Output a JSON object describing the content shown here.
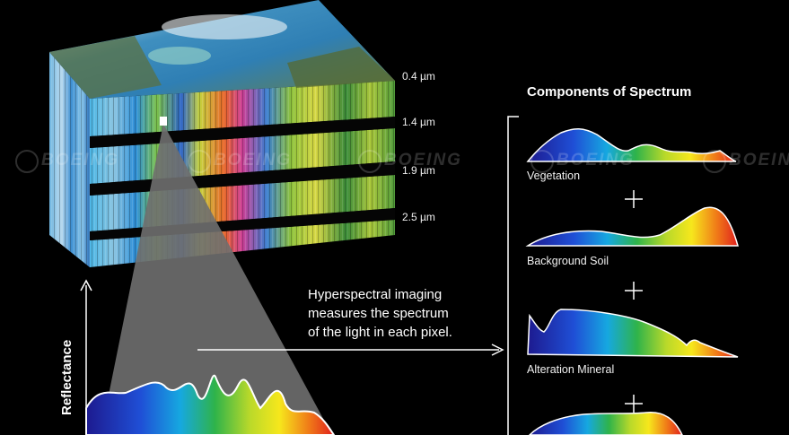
{
  "wavelengths": [
    "0.4 µm",
    "1.4 µm",
    "1.9 µm",
    "2.5 µm"
  ],
  "components_title": "Components of Spectrum",
  "components": [
    {
      "label": "Vegetation"
    },
    {
      "label": "Background Soil"
    },
    {
      "label": "Alteration Mineral"
    },
    {
      "label": ""
    }
  ],
  "plus_symbol": "+",
  "caption_lines": [
    "Hyperspectral imaging",
    "measures the spectrum",
    "of the light in each pixel."
  ],
  "y_axis_label": "Reflectance",
  "watermark": "BOEING",
  "colors": {
    "background": "#000000",
    "text": "#ffffff",
    "cone": "#6f6f6f"
  }
}
